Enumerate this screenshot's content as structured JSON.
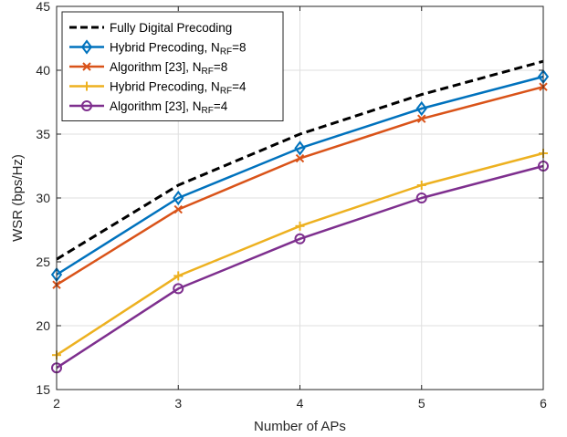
{
  "chart_data": {
    "type": "line",
    "xlabel": "Number of APs",
    "ylabel": "WSR (bps/Hz)",
    "x": [
      2,
      3,
      4,
      5,
      6
    ],
    "xlim": [
      2,
      6
    ],
    "ylim": [
      15,
      45
    ],
    "xticks": [
      "2",
      "3",
      "4",
      "5",
      "6"
    ],
    "yticks": [
      "15",
      "20",
      "25",
      "30",
      "35",
      "40",
      "45"
    ],
    "grid": true,
    "legend_position": "top-left",
    "series": [
      {
        "name": "Fully Digital Precoding",
        "name_main": "Fully Digital Precoding",
        "name_sub": "",
        "name_tail": "",
        "values": [
          25.2,
          31.0,
          35.0,
          38.1,
          40.7
        ],
        "color": "#000000",
        "marker": "none",
        "dash": "dashed"
      },
      {
        "name": "Hybrid Precoding, N_RF=8",
        "name_main": "Hybrid Precoding, N",
        "name_sub": "RF",
        "name_tail": "=8",
        "values": [
          24.0,
          30.0,
          33.9,
          37.0,
          39.5
        ],
        "color": "#0072BD",
        "marker": "diamond",
        "dash": "solid"
      },
      {
        "name": "Algorithm [23], N_RF=8",
        "name_main": "Algorithm [23], N",
        "name_sub": "RF",
        "name_tail": "=8",
        "values": [
          23.2,
          29.1,
          33.1,
          36.2,
          38.7
        ],
        "color": "#D95319",
        "marker": "x",
        "dash": "solid"
      },
      {
        "name": "Hybrid Precoding, N_RF=4",
        "name_main": "Hybrid Precoding, N",
        "name_sub": "RF",
        "name_tail": "=4",
        "values": [
          17.7,
          23.9,
          27.8,
          31.0,
          33.5
        ],
        "color": "#EDB120",
        "marker": "plus",
        "dash": "solid"
      },
      {
        "name": "Algorithm [23], N_RF=4",
        "name_main": "Algorithm [23], N",
        "name_sub": "RF",
        "name_tail": "=4",
        "values": [
          16.7,
          22.9,
          26.8,
          30.0,
          32.5
        ],
        "color": "#7E2F8E",
        "marker": "circle",
        "dash": "solid"
      }
    ]
  }
}
